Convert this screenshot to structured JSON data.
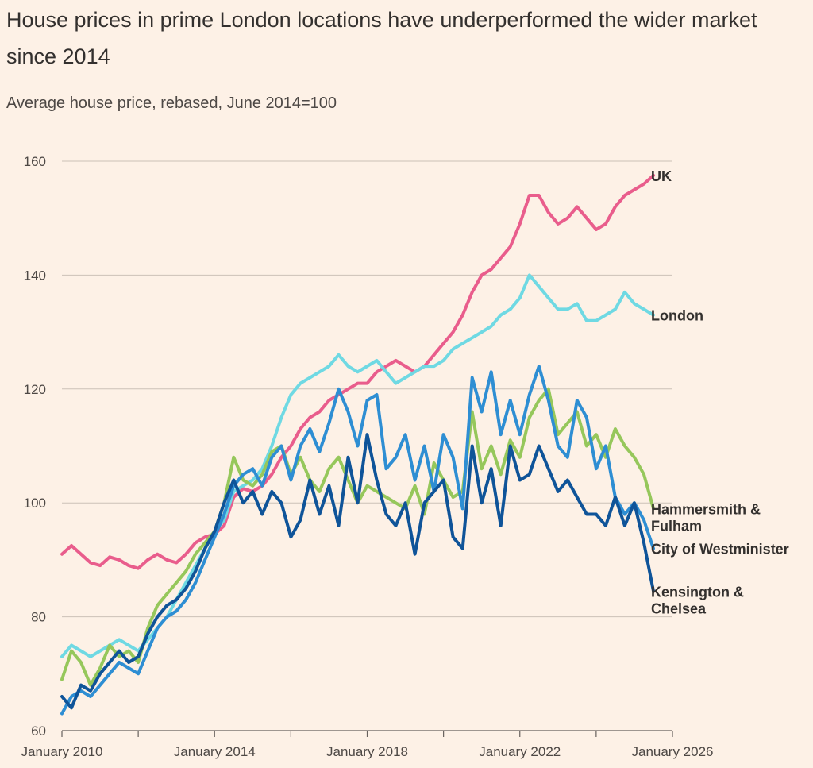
{
  "title": "House prices in prime London locations have underperformed the wider market since 2014",
  "subtitle": "Average house price, rebased, June 2014=100",
  "chart_data": {
    "type": "line",
    "title": "House prices in prime London locations have underperformed the wider market since 2014",
    "subtitle": "Average house price, rebased, June 2014=100",
    "xlabel": "",
    "ylabel": "",
    "x_range": [
      2010,
      2026
    ],
    "ylim": [
      60,
      160
    ],
    "y_ticks": [
      60,
      80,
      100,
      120,
      140,
      160
    ],
    "x_tick_labels": [
      {
        "x": 2010,
        "label": "January 2010"
      },
      {
        "x": 2014,
        "label": "January 2014"
      },
      {
        "x": 2018,
        "label": "January 2018"
      },
      {
        "x": 2022,
        "label": "January 2022"
      },
      {
        "x": 2026,
        "label": "January 2026"
      }
    ],
    "grid": true,
    "legend": "direct labels at line ends",
    "series": [
      {
        "name": "UK",
        "color": "#e95d8c",
        "x": [
          2010.0,
          2010.25,
          2010.5,
          2010.75,
          2011.0,
          2011.25,
          2011.5,
          2011.75,
          2012.0,
          2012.25,
          2012.5,
          2012.75,
          2013.0,
          2013.25,
          2013.5,
          2013.75,
          2014.0,
          2014.25,
          2014.5,
          2014.75,
          2015.0,
          2015.25,
          2015.5,
          2015.75,
          2016.0,
          2016.25,
          2016.5,
          2016.75,
          2017.0,
          2017.25,
          2017.5,
          2017.75,
          2018.0,
          2018.25,
          2018.5,
          2018.75,
          2019.0,
          2019.25,
          2019.5,
          2019.75,
          2020.0,
          2020.25,
          2020.5,
          2020.75,
          2021.0,
          2021.25,
          2021.5,
          2021.75,
          2022.0,
          2022.25,
          2022.5,
          2022.75,
          2023.0,
          2023.25,
          2023.5,
          2023.75,
          2024.0,
          2024.25,
          2024.5,
          2024.75,
          2025.0,
          2025.25,
          2025.5
        ],
        "y": [
          91,
          92.5,
          91,
          89.5,
          89,
          90.5,
          90,
          89,
          88.5,
          90,
          91,
          90,
          89.5,
          91,
          93,
          94,
          94.5,
          96,
          101,
          102.5,
          102,
          103,
          105,
          108,
          110,
          113,
          115,
          116,
          118,
          119,
          120,
          121,
          121,
          123,
          124,
          125,
          124,
          123,
          124,
          126,
          128,
          130,
          133,
          137,
          140,
          141,
          143,
          145,
          149,
          154,
          154,
          151,
          149,
          150,
          152,
          150,
          148,
          149,
          152,
          154,
          155,
          156,
          157.5
        ]
      },
      {
        "name": "London",
        "color": "#6fd9e3",
        "x": [
          2010.0,
          2010.25,
          2010.5,
          2010.75,
          2011.0,
          2011.25,
          2011.5,
          2011.75,
          2012.0,
          2012.25,
          2012.5,
          2012.75,
          2013.0,
          2013.25,
          2013.5,
          2013.75,
          2014.0,
          2014.25,
          2014.5,
          2014.75,
          2015.0,
          2015.25,
          2015.5,
          2015.75,
          2016.0,
          2016.25,
          2016.5,
          2016.75,
          2017.0,
          2017.25,
          2017.5,
          2017.75,
          2018.0,
          2018.25,
          2018.5,
          2018.75,
          2019.0,
          2019.25,
          2019.5,
          2019.75,
          2020.0,
          2020.25,
          2020.5,
          2020.75,
          2021.0,
          2021.25,
          2021.5,
          2021.75,
          2022.0,
          2022.25,
          2022.5,
          2022.75,
          2023.0,
          2023.25,
          2023.5,
          2023.75,
          2024.0,
          2024.25,
          2024.5,
          2024.75,
          2025.0,
          2025.25,
          2025.5
        ],
        "y": [
          73,
          75,
          74,
          73,
          74,
          75,
          76,
          75,
          74,
          76,
          78,
          80,
          83,
          86,
          89,
          92,
          95,
          97,
          102,
          103,
          104,
          106,
          110,
          115,
          119,
          121,
          122,
          123,
          124,
          126,
          124,
          123,
          124,
          125,
          123,
          121,
          122,
          123,
          124,
          124,
          125,
          127,
          128,
          129,
          130,
          131,
          133,
          134,
          136,
          140,
          138,
          136,
          134,
          134,
          135,
          132,
          132,
          133,
          134,
          137,
          135,
          134,
          133
        ]
      },
      {
        "name": "Hammersmith & Fulham",
        "color": "#96c75b",
        "x": [
          2010.0,
          2010.25,
          2010.5,
          2010.75,
          2011.0,
          2011.25,
          2011.5,
          2011.75,
          2012.0,
          2012.25,
          2012.5,
          2012.75,
          2013.0,
          2013.25,
          2013.5,
          2013.75,
          2014.0,
          2014.25,
          2014.5,
          2014.75,
          2015.0,
          2015.25,
          2015.5,
          2015.75,
          2016.0,
          2016.25,
          2016.5,
          2016.75,
          2017.0,
          2017.25,
          2017.5,
          2017.75,
          2018.0,
          2018.25,
          2018.5,
          2018.75,
          2019.0,
          2019.25,
          2019.5,
          2019.75,
          2020.0,
          2020.25,
          2020.5,
          2020.75,
          2021.0,
          2021.25,
          2021.5,
          2021.75,
          2022.0,
          2022.25,
          2022.5,
          2022.75,
          2023.0,
          2023.25,
          2023.5,
          2023.75,
          2024.0,
          2024.25,
          2024.5,
          2024.75,
          2025.0,
          2025.25,
          2025.5
        ],
        "y": [
          69,
          74,
          72,
          68,
          71,
          75,
          73,
          74,
          72,
          78,
          82,
          84,
          86,
          88,
          91,
          93,
          95,
          100,
          108,
          104,
          103,
          105,
          109,
          110,
          105,
          108,
          104,
          102,
          106,
          108,
          104,
          100,
          103,
          102,
          101,
          100,
          99,
          103,
          98,
          107,
          104,
          101,
          102,
          116,
          106,
          110,
          105,
          111,
          108,
          115,
          118,
          120,
          112,
          114,
          116,
          110,
          112,
          108,
          113,
          110,
          108,
          105,
          99
        ]
      },
      {
        "name": "City of Westminister",
        "color": "#2e8ed3",
        "x": [
          2010.0,
          2010.25,
          2010.5,
          2010.75,
          2011.0,
          2011.25,
          2011.5,
          2011.75,
          2012.0,
          2012.25,
          2012.5,
          2012.75,
          2013.0,
          2013.25,
          2013.5,
          2013.75,
          2014.0,
          2014.25,
          2014.5,
          2014.75,
          2015.0,
          2015.25,
          2015.5,
          2015.75,
          2016.0,
          2016.25,
          2016.5,
          2016.75,
          2017.0,
          2017.25,
          2017.5,
          2017.75,
          2018.0,
          2018.25,
          2018.5,
          2018.75,
          2019.0,
          2019.25,
          2019.5,
          2019.75,
          2020.0,
          2020.25,
          2020.5,
          2020.75,
          2021.0,
          2021.25,
          2021.5,
          2021.75,
          2022.0,
          2022.25,
          2022.5,
          2022.75,
          2023.0,
          2023.25,
          2023.5,
          2023.75,
          2024.0,
          2024.25,
          2024.5,
          2024.75,
          2025.0,
          2025.25,
          2025.5
        ],
        "y": [
          63,
          66,
          67,
          66,
          68,
          70,
          72,
          71,
          70,
          74,
          78,
          80,
          81,
          83,
          86,
          90,
          94,
          98,
          103,
          105,
          106,
          103,
          108,
          110,
          104,
          110,
          113,
          109,
          114,
          120,
          116,
          110,
          118,
          119,
          106,
          108,
          112,
          104,
          110,
          102,
          112,
          108,
          99,
          122,
          116,
          123,
          112,
          118,
          112,
          119,
          124,
          118,
          110,
          108,
          118,
          115,
          106,
          110,
          101,
          98,
          100,
          97,
          92
        ]
      },
      {
        "name": "Kensington & Chelsea",
        "color": "#0f5499",
        "x": [
          2010.0,
          2010.25,
          2010.5,
          2010.75,
          2011.0,
          2011.25,
          2011.5,
          2011.75,
          2012.0,
          2012.25,
          2012.5,
          2012.75,
          2013.0,
          2013.25,
          2013.5,
          2013.75,
          2014.0,
          2014.25,
          2014.5,
          2014.75,
          2015.0,
          2015.25,
          2015.5,
          2015.75,
          2016.0,
          2016.25,
          2016.5,
          2016.75,
          2017.0,
          2017.25,
          2017.5,
          2017.75,
          2018.0,
          2018.25,
          2018.5,
          2018.75,
          2019.0,
          2019.25,
          2019.5,
          2019.75,
          2020.0,
          2020.25,
          2020.5,
          2020.75,
          2021.0,
          2021.25,
          2021.5,
          2021.75,
          2022.0,
          2022.25,
          2022.5,
          2022.75,
          2023.0,
          2023.25,
          2023.5,
          2023.75,
          2024.0,
          2024.25,
          2024.5,
          2024.75,
          2025.0,
          2025.25,
          2025.5
        ],
        "y": [
          66,
          64,
          68,
          67,
          70,
          72,
          74,
          72,
          73,
          77,
          80,
          82,
          83,
          85,
          88,
          92,
          95,
          100,
          104,
          100,
          102,
          98,
          102,
          100,
          94,
          97,
          104,
          98,
          103,
          96,
          108,
          100,
          112,
          104,
          98,
          96,
          100,
          91,
          100,
          102,
          104,
          94,
          92,
          110,
          100,
          106,
          96,
          110,
          104,
          105,
          110,
          106,
          102,
          104,
          101,
          98,
          98,
          96,
          101,
          96,
          100,
          93,
          84.5
        ]
      }
    ],
    "labels": [
      {
        "series": "UK",
        "lines": [
          "UK"
        ]
      },
      {
        "series": "London",
        "lines": [
          "London"
        ]
      },
      {
        "series": "Hammersmith & Fulham",
        "lines": [
          "Hammersmith &",
          "Fulham"
        ]
      },
      {
        "series": "City of Westminister",
        "lines": [
          "City of Westminister"
        ]
      },
      {
        "series": "Kensington & Chelsea",
        "lines": [
          "Kensington &",
          "Chelsea"
        ]
      }
    ]
  }
}
